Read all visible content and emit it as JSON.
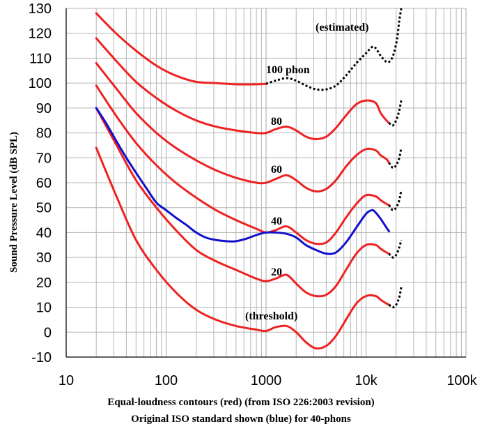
{
  "chart_data": {
    "type": "line",
    "ylabel": "Sound Pressure Level (dB SPL)",
    "xscale": "log",
    "xlim": [
      10,
      100000
    ],
    "ylim": [
      -10,
      130
    ],
    "x_ticks": [
      10,
      100,
      1000,
      10000,
      100000
    ],
    "x_tick_labels": [
      "10",
      "100",
      "1000",
      "10k",
      "100k"
    ],
    "y_ticks": [
      -10,
      0,
      10,
      20,
      30,
      40,
      50,
      60,
      70,
      80,
      90,
      100,
      110,
      120,
      130
    ],
    "y_tick_labels": [
      "-10",
      "0",
      "10",
      "20",
      "30",
      "40",
      "50",
      "60",
      "70",
      "80",
      "90",
      "100",
      "110",
      "120",
      "130"
    ],
    "grid": true,
    "caption_line1": "Equal-loudness contours (red) (from ISO 226:2003 revision)",
    "caption_line2": "Original ISO standard shown (blue) for 40-phons",
    "annotations": {
      "estimated": "(estimated)",
      "phon100": "100 phon",
      "phon80": "80",
      "phon60": "60",
      "phon40": "40",
      "phon20": "20",
      "threshold": "(threshold)"
    },
    "colors": {
      "red": "#ee2222",
      "blue": "#1111cc",
      "dotted": "#000000",
      "grid": "#b4b4b4"
    },
    "series": [
      {
        "name": "100 phon",
        "color": "red",
        "points": [
          [
            20,
            128
          ],
          [
            31.5,
            120
          ],
          [
            50,
            113
          ],
          [
            80,
            107
          ],
          [
            125,
            103
          ],
          [
            200,
            100.5
          ],
          [
            315,
            100
          ],
          [
            500,
            99.5
          ],
          [
            800,
            99.5
          ],
          [
            1000,
            99.7
          ]
        ]
      },
      {
        "name": "100 phon (estimated)",
        "color": "dotted",
        "dashed": true,
        "points": [
          [
            1000,
            99.7
          ],
          [
            1250,
            101
          ],
          [
            1600,
            102
          ],
          [
            2000,
            101
          ],
          [
            2500,
            99
          ],
          [
            3150,
            97.5
          ],
          [
            4000,
            97.5
          ],
          [
            5000,
            99
          ],
          [
            6300,
            103
          ],
          [
            8000,
            108
          ],
          [
            10000,
            112
          ],
          [
            11500,
            114.5
          ],
          [
            12500,
            114
          ],
          [
            14000,
            111
          ],
          [
            16000,
            108.5
          ],
          [
            17500,
            109
          ],
          [
            19000,
            112
          ],
          [
            20500,
            118
          ],
          [
            21500,
            125
          ],
          [
            22500,
            130
          ]
        ]
      },
      {
        "name": "80 phon",
        "color": "red",
        "points": [
          [
            20,
            118
          ],
          [
            31.5,
            109
          ],
          [
            50,
            100.5
          ],
          [
            80,
            94
          ],
          [
            125,
            89
          ],
          [
            200,
            85
          ],
          [
            315,
            82.5
          ],
          [
            500,
            81
          ],
          [
            800,
            80
          ],
          [
            1000,
            80
          ],
          [
            1250,
            81.5
          ],
          [
            1600,
            82.5
          ],
          [
            2000,
            81
          ],
          [
            2500,
            78.5
          ],
          [
            3150,
            77.5
          ],
          [
            4000,
            78.5
          ],
          [
            5000,
            82
          ],
          [
            6300,
            87
          ],
          [
            8000,
            91.5
          ],
          [
            10000,
            93
          ],
          [
            12500,
            92
          ],
          [
            14000,
            88
          ],
          [
            16000,
            85
          ],
          [
            17000,
            84
          ]
        ]
      },
      {
        "name": "80 phon (estimated)",
        "color": "dotted",
        "dashed": true,
        "points": [
          [
            17000,
            84
          ],
          [
            18500,
            83
          ],
          [
            20000,
            85
          ],
          [
            21500,
            89
          ],
          [
            22500,
            93
          ]
        ]
      },
      {
        "name": "60 phon",
        "color": "red",
        "points": [
          [
            20,
            108
          ],
          [
            31.5,
            98
          ],
          [
            50,
            88
          ],
          [
            80,
            80
          ],
          [
            125,
            74
          ],
          [
            200,
            69
          ],
          [
            315,
            65
          ],
          [
            500,
            62
          ],
          [
            800,
            60
          ],
          [
            1000,
            60
          ],
          [
            1250,
            61.5
          ],
          [
            1600,
            63
          ],
          [
            2000,
            61
          ],
          [
            2500,
            58
          ],
          [
            3150,
            56.5
          ],
          [
            4000,
            57.5
          ],
          [
            5000,
            61
          ],
          [
            6300,
            66.5
          ],
          [
            8000,
            71
          ],
          [
            10000,
            73.5
          ],
          [
            12500,
            73
          ],
          [
            14000,
            71
          ],
          [
            16000,
            69.5
          ],
          [
            17000,
            68
          ]
        ]
      },
      {
        "name": "60 phon (estimated)",
        "color": "dotted",
        "dashed": true,
        "points": [
          [
            17000,
            68
          ],
          [
            18500,
            66
          ],
          [
            20000,
            67
          ],
          [
            21500,
            70
          ],
          [
            22500,
            74
          ]
        ]
      },
      {
        "name": "40 phon",
        "color": "red",
        "points": [
          [
            20,
            99
          ],
          [
            31.5,
            87
          ],
          [
            50,
            76
          ],
          [
            80,
            67
          ],
          [
            125,
            60
          ],
          [
            200,
            54
          ],
          [
            315,
            49
          ],
          [
            500,
            45
          ],
          [
            800,
            41.5
          ],
          [
            1000,
            40
          ],
          [
            1250,
            41
          ],
          [
            1600,
            42.5
          ],
          [
            2000,
            40
          ],
          [
            2500,
            37
          ],
          [
            3150,
            35.5
          ],
          [
            4000,
            36
          ],
          [
            5000,
            40
          ],
          [
            6300,
            46
          ],
          [
            8000,
            51.5
          ],
          [
            10000,
            55
          ],
          [
            12500,
            54.5
          ],
          [
            14000,
            53
          ],
          [
            16000,
            51.5
          ],
          [
            17000,
            51
          ]
        ]
      },
      {
        "name": "40 phon (estimated)",
        "color": "dotted",
        "dashed": true,
        "points": [
          [
            17000,
            51
          ],
          [
            18500,
            49
          ],
          [
            20000,
            50
          ],
          [
            21500,
            53
          ],
          [
            22500,
            57
          ]
        ]
      },
      {
        "name": "20 phon",
        "color": "red",
        "points": [
          [
            20,
            90
          ],
          [
            31.5,
            75.5
          ],
          [
            50,
            61
          ],
          [
            80,
            50
          ],
          [
            125,
            41
          ],
          [
            200,
            33
          ],
          [
            315,
            28.5
          ],
          [
            500,
            25
          ],
          [
            800,
            21.5
          ],
          [
            1000,
            20.5
          ],
          [
            1250,
            21.5
          ],
          [
            1600,
            23
          ],
          [
            2000,
            19.5
          ],
          [
            2500,
            16
          ],
          [
            3150,
            14.5
          ],
          [
            4000,
            15
          ],
          [
            5000,
            18.5
          ],
          [
            6300,
            25
          ],
          [
            8000,
            31.5
          ],
          [
            10000,
            35
          ],
          [
            12500,
            35
          ],
          [
            14000,
            33.5
          ],
          [
            16000,
            32
          ],
          [
            17000,
            31.5
          ]
        ]
      },
      {
        "name": "20 phon (estimated)",
        "color": "dotted",
        "dashed": true,
        "points": [
          [
            17000,
            31.5
          ],
          [
            18500,
            30
          ],
          [
            20000,
            31
          ],
          [
            21500,
            34
          ],
          [
            22500,
            37
          ]
        ]
      },
      {
        "name": "threshold",
        "color": "red",
        "points": [
          [
            20,
            74
          ],
          [
            31.5,
            55
          ],
          [
            50,
            37
          ],
          [
            80,
            25
          ],
          [
            125,
            16
          ],
          [
            200,
            9
          ],
          [
            315,
            5
          ],
          [
            500,
            2.5
          ],
          [
            800,
            1
          ],
          [
            1000,
            0.5
          ],
          [
            1250,
            2
          ],
          [
            1600,
            2.5
          ],
          [
            2000,
            0
          ],
          [
            2500,
            -4
          ],
          [
            3150,
            -6.5
          ],
          [
            4000,
            -5.5
          ],
          [
            5000,
            -1.5
          ],
          [
            6300,
            5
          ],
          [
            8000,
            11.5
          ],
          [
            10000,
            14.5
          ],
          [
            12500,
            14.5
          ],
          [
            14000,
            13
          ],
          [
            16000,
            11.5
          ],
          [
            17000,
            11
          ]
        ]
      },
      {
        "name": "threshold (estimated)",
        "color": "dotted",
        "dashed": true,
        "points": [
          [
            17000,
            11
          ],
          [
            18500,
            10
          ],
          [
            20000,
            11
          ],
          [
            21500,
            14
          ],
          [
            22500,
            18
          ]
        ]
      },
      {
        "name": "40 phon original ISO",
        "color": "blue",
        "points": [
          [
            20,
            90
          ],
          [
            25,
            84
          ],
          [
            31.5,
            77
          ],
          [
            40,
            70
          ],
          [
            50,
            64
          ],
          [
            63,
            58
          ],
          [
            80,
            52
          ],
          [
            100,
            49
          ],
          [
            125,
            46
          ],
          [
            160,
            43
          ],
          [
            200,
            40
          ],
          [
            250,
            38
          ],
          [
            315,
            37
          ],
          [
            400,
            36.5
          ],
          [
            500,
            36.5
          ],
          [
            630,
            37.5
          ],
          [
            800,
            39
          ],
          [
            1000,
            40
          ],
          [
            1250,
            40
          ],
          [
            1600,
            39.5
          ],
          [
            2000,
            38
          ],
          [
            2500,
            35
          ],
          [
            3150,
            33
          ],
          [
            4000,
            31.5
          ],
          [
            5000,
            32
          ],
          [
            6300,
            36
          ],
          [
            8000,
            42
          ],
          [
            10000,
            47.5
          ],
          [
            11500,
            49
          ],
          [
            12500,
            48
          ],
          [
            14000,
            45.5
          ],
          [
            16000,
            42
          ],
          [
            17000,
            40.5
          ]
        ]
      }
    ]
  }
}
